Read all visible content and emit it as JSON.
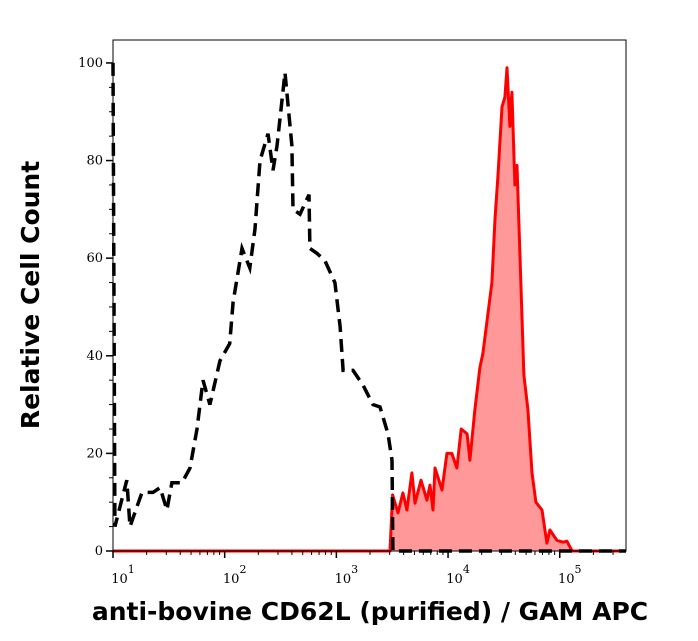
{
  "chart_data": {
    "type": "area",
    "title": "",
    "xlabel": "anti-bovine CD62L (purified) / GAM APC",
    "ylabel": "Relative Cell Count",
    "x_scale": "log",
    "xlim": [
      10,
      392000
    ],
    "ylim": [
      0,
      104.7
    ],
    "grid": false,
    "legend": "none",
    "x_ticks": [
      {
        "base": "10",
        "exp": "1",
        "value": 10
      },
      {
        "base": "10",
        "exp": "2",
        "value": 100
      },
      {
        "base": "10",
        "exp": "3",
        "value": 1000
      },
      {
        "base": "10",
        "exp": "4",
        "value": 10000
      },
      {
        "base": "10",
        "exp": "5",
        "value": 100000
      }
    ],
    "y_ticks": [
      "0",
      "20",
      "40",
      "60",
      "80",
      "100"
    ],
    "series": [
      {
        "style": "dashed-line",
        "color": "#000000",
        "x": [
          10,
          10.4,
          13.3,
          14.2,
          18.2,
          22.8,
          26.4,
          30.4,
          33.7,
          41.5,
          48.9,
          56.5,
          64.0,
          73.8,
          90.8,
          111,
          119,
          137,
          143,
          168,
          187,
          207,
          244,
          271,
          294,
          347,
          400,
          409,
          472,
          569,
          580,
          670,
          790,
          971,
          1080,
          1150,
          1410,
          1730,
          2130,
          2460,
          2900,
          3150,
          3210,
          392000
        ],
        "y": [
          100,
          5,
          14.5,
          5,
          12,
          12,
          13,
          8.4,
          14,
          14,
          17,
          25,
          35,
          30,
          39,
          42.5,
          51,
          59.5,
          62,
          58,
          66,
          80,
          85.5,
          78,
          83,
          98,
          83,
          70,
          69,
          73,
          62,
          61,
          59.5,
          55,
          46,
          37,
          37,
          34,
          30,
          29.5,
          24,
          18.6,
          0,
          0
        ]
      },
      {
        "style": "filled-line",
        "color": "#ff0000",
        "fill": "#ff9999",
        "x": [
          10,
          3020,
          3190,
          3560,
          3940,
          4280,
          4750,
          5060,
          5720,
          6470,
          6890,
          7330,
          7640,
          8820,
          9770,
          10800,
          12000,
          13100,
          14800,
          15700,
          17400,
          19300,
          20500,
          24700,
          26300,
          28000,
          30400,
          32300,
          33700,
          35800,
          37300,
          39700,
          41400,
          47800,
          51900,
          56400,
          61200,
          69300,
          76800,
          81700,
          94400,
          107000,
          116000,
          129000,
          392000
        ],
        "y": [
          0,
          0,
          11.5,
          7.8,
          11.9,
          8.4,
          16,
          9.8,
          14.5,
          10.4,
          13.5,
          8.4,
          17,
          12.5,
          20,
          20,
          17,
          25,
          24,
          18.6,
          29,
          37.6,
          40.5,
          55,
          68,
          77,
          91,
          93,
          99,
          87,
          94,
          75,
          79,
          36,
          29,
          16,
          10,
          8.4,
          1.6,
          4.3,
          2.2,
          1.8,
          2,
          0,
          0
        ]
      }
    ]
  }
}
